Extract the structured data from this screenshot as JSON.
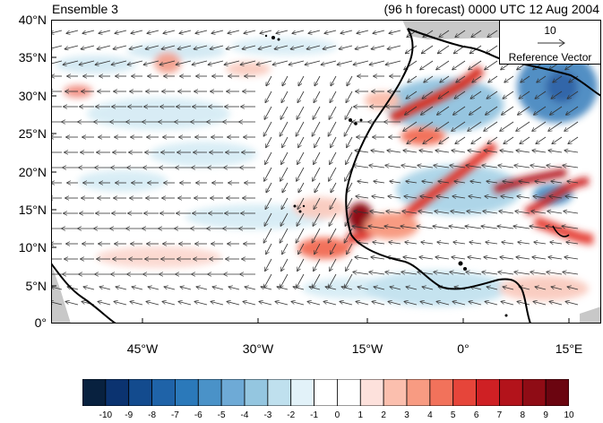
{
  "header": {
    "left_title": "Ensemble 3",
    "right_title": "(96 h forecast) 0000 UTC 12 Aug 2004"
  },
  "map": {
    "lat_ticks": [
      "40°N",
      "35°N",
      "30°N",
      "25°N",
      "20°N",
      "15°N",
      "10°N",
      "5°N",
      "0°"
    ],
    "lon_ticks": [
      "45°W",
      "30°W",
      "15°W",
      "0°",
      "15°E"
    ],
    "land_color": "#c8c8c8",
    "coast_color": "#000000"
  },
  "reference_vector": {
    "value": "10",
    "label": "Reference Vector"
  },
  "colorbar": {
    "labels": [
      "-10",
      "-9",
      "-8",
      "-7",
      "-6",
      "-5",
      "-4",
      "-3",
      "-2",
      "-1",
      "0",
      "1",
      "2",
      "3",
      "4",
      "5",
      "6",
      "7",
      "8",
      "9",
      "10"
    ],
    "colors": [
      "#08213f",
      "#0b3370",
      "#134b8e",
      "#1f63a8",
      "#2b79ba",
      "#4a92c8",
      "#6eaad6",
      "#94c6e0",
      "#bfe0ee",
      "#e2f2f9",
      "#ffffff",
      "#ffffff",
      "#fde1dc",
      "#fbbfae",
      "#f89b82",
      "#f2725b",
      "#e6453a",
      "#cf2024",
      "#b3131b",
      "#8f0c15",
      "#6b0510"
    ]
  }
}
